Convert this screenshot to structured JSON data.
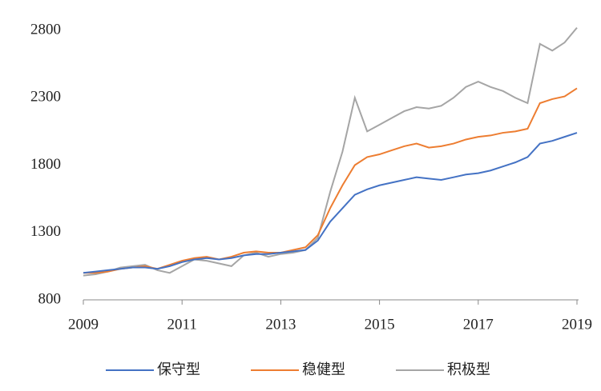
{
  "chart_data": {
    "type": "line",
    "x": [
      2009,
      2009.25,
      2009.5,
      2009.75,
      2010,
      2010.25,
      2010.5,
      2010.75,
      2011,
      2011.25,
      2011.5,
      2011.75,
      2012,
      2012.25,
      2012.5,
      2012.75,
      2013,
      2013.25,
      2013.5,
      2013.75,
      2014,
      2014.25,
      2014.5,
      2014.75,
      2015,
      2015.25,
      2015.5,
      2015.75,
      2016,
      2016.25,
      2016.5,
      2016.75,
      2017,
      2017.25,
      2017.5,
      2017.75,
      2018,
      2018.25,
      2018.5,
      2018.75,
      2019
    ],
    "series": [
      {
        "name": "保守型",
        "color": "#4472c4",
        "values": [
          1000,
          1010,
          1020,
          1030,
          1040,
          1040,
          1030,
          1050,
          1080,
          1100,
          1110,
          1100,
          1110,
          1130,
          1140,
          1140,
          1150,
          1160,
          1170,
          1240,
          1380,
          1480,
          1580,
          1620,
          1650,
          1670,
          1690,
          1710,
          1700,
          1690,
          1710,
          1730,
          1740,
          1760,
          1790,
          1820,
          1860,
          1960,
          1980,
          2010,
          2040
        ]
      },
      {
        "name": "稳健型",
        "color": "#ed7d31",
        "values": [
          1000,
          1000,
          1010,
          1030,
          1040,
          1050,
          1030,
          1060,
          1090,
          1110,
          1120,
          1100,
          1120,
          1150,
          1160,
          1150,
          1150,
          1170,
          1190,
          1280,
          1480,
          1650,
          1800,
          1860,
          1880,
          1910,
          1940,
          1960,
          1930,
          1940,
          1960,
          1990,
          2010,
          2020,
          2040,
          2050,
          2070,
          2260,
          2290,
          2310,
          2370
        ]
      },
      {
        "name": "积极型",
        "color": "#a5a5a5",
        "values": [
          980,
          990,
          1010,
          1040,
          1050,
          1060,
          1020,
          1000,
          1050,
          1100,
          1090,
          1070,
          1050,
          1130,
          1150,
          1120,
          1140,
          1150,
          1170,
          1260,
          1600,
          1900,
          2300,
          2050,
          2100,
          2150,
          2200,
          2230,
          2220,
          2240,
          2300,
          2380,
          2420,
          2380,
          2350,
          2300,
          2260,
          2700,
          2650,
          2710,
          2820
        ]
      }
    ],
    "xlim": [
      2009,
      2019
    ],
    "xticks": [
      2009,
      2011,
      2013,
      2015,
      2017,
      2019
    ],
    "ylim": [
      800,
      2850
    ],
    "yticks": [
      800,
      1300,
      1800,
      2300,
      2800
    ]
  }
}
